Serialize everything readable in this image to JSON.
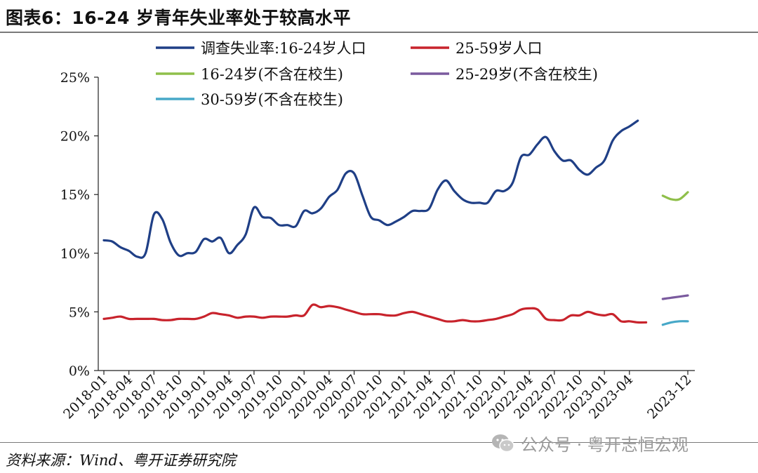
{
  "title": "图表6：16-24 岁青年失业率处于较高水平",
  "source": "资料来源：Wind、粤开证券研究院",
  "watermark": {
    "text": "公众号 · 粤开志恒宏观",
    "icon": "wechat-icon"
  },
  "chart_data": {
    "type": "line",
    "title": "图表6：16-24 岁青年失业率处于较高水平",
    "xlabel": "",
    "ylabel": "",
    "ylim": [
      0,
      25
    ],
    "yticks": [
      "0%",
      "5%",
      "10%",
      "15%",
      "20%",
      "25%"
    ],
    "xticks": [
      "2018-01",
      "2018-04",
      "2018-07",
      "2018-10",
      "2019-01",
      "2019-04",
      "2019-07",
      "2019-10",
      "2020-01",
      "2020-04",
      "2020-07",
      "2020-10",
      "2021-01",
      "2021-04",
      "2021-07",
      "2021-10",
      "2022-01",
      "2022-04",
      "2022-07",
      "2022-10",
      "2023-01",
      "2023-04",
      "2023-12"
    ],
    "grid": false,
    "legend_position": "top",
    "series": [
      {
        "name": "调查失业率:16-24岁人口",
        "color": "#1f3f86",
        "start_index": 0,
        "values": [
          11.1,
          11.0,
          10.5,
          10.2,
          9.7,
          10.0,
          13.3,
          12.9,
          10.9,
          9.8,
          10.0,
          10.1,
          11.2,
          11.0,
          11.3,
          10.0,
          10.7,
          11.6,
          13.9,
          13.1,
          13.0,
          12.4,
          12.4,
          12.3,
          13.6,
          13.4,
          13.8,
          14.8,
          15.4,
          16.8,
          16.8,
          14.9,
          13.1,
          12.8,
          12.4,
          12.7,
          13.1,
          13.6,
          13.6,
          13.8,
          15.4,
          16.2,
          15.3,
          14.6,
          14.3,
          14.3,
          14.3,
          15.3,
          15.3,
          16.0,
          18.2,
          18.4,
          19.3,
          19.9,
          18.7,
          17.9,
          17.9,
          17.1,
          16.7,
          17.3,
          17.9,
          19.6,
          20.4,
          20.8,
          21.3
        ]
      },
      {
        "name": "25-59岁人口",
        "color": "#c8232c",
        "start_index": 0,
        "values": [
          4.4,
          4.5,
          4.6,
          4.4,
          4.4,
          4.4,
          4.4,
          4.3,
          4.3,
          4.4,
          4.4,
          4.4,
          4.6,
          4.9,
          4.8,
          4.7,
          4.5,
          4.6,
          4.6,
          4.5,
          4.6,
          4.6,
          4.6,
          4.7,
          4.7,
          5.6,
          5.4,
          5.5,
          5.4,
          5.2,
          5.0,
          4.8,
          4.8,
          4.8,
          4.7,
          4.7,
          4.9,
          5.0,
          4.8,
          4.6,
          4.4,
          4.2,
          4.2,
          4.3,
          4.2,
          4.2,
          4.3,
          4.4,
          4.6,
          4.8,
          5.2,
          5.3,
          5.2,
          4.4,
          4.3,
          4.3,
          4.7,
          4.7,
          5.0,
          4.8,
          4.7,
          4.8,
          4.2,
          4.2,
          4.1,
          4.1
        ]
      },
      {
        "name": "16-24岁(不含在校生)",
        "color": "#8fbf4a",
        "start_index": 67,
        "values": [
          14.9,
          14.6,
          14.6,
          15.2
        ]
      },
      {
        "name": "25-29岁(不含在校生)",
        "color": "#7a5a9e",
        "start_index": 67,
        "values": [
          6.1,
          6.2,
          6.3,
          6.4
        ]
      },
      {
        "name": "30-59岁(不含在校生)",
        "color": "#47a8c8",
        "start_index": 67,
        "values": [
          3.9,
          4.1,
          4.2,
          4.2
        ]
      }
    ]
  }
}
